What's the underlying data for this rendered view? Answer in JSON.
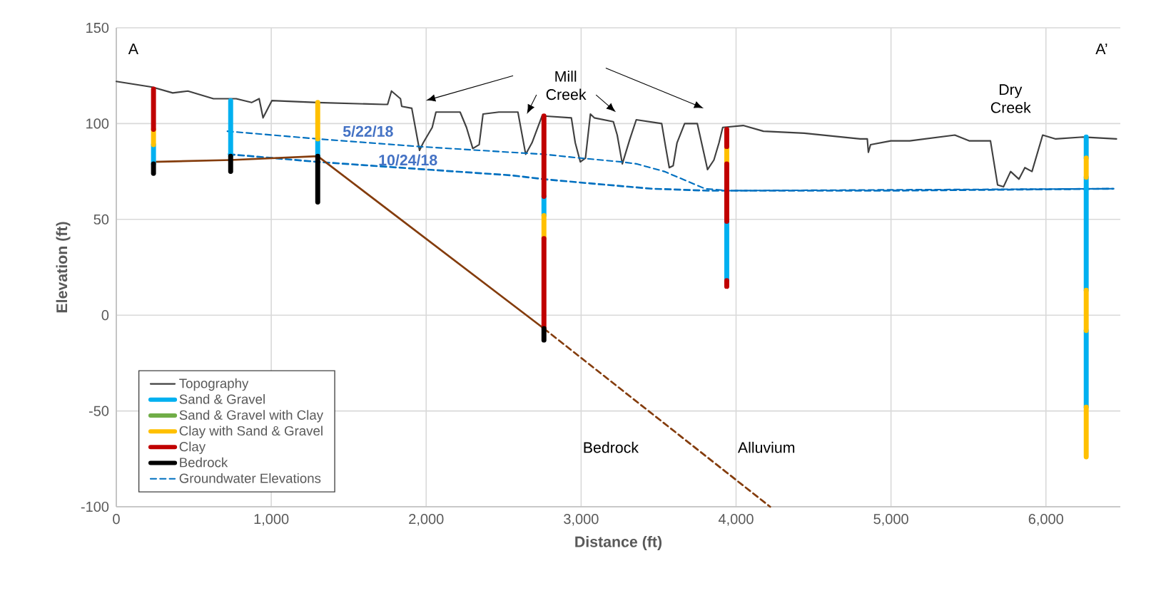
{
  "chart_data": {
    "type": "line",
    "xlabel": "Distance (ft)",
    "ylabel": "Elevation (ft)",
    "xlim": [
      0,
      6480
    ],
    "ylim": [
      -100,
      150
    ],
    "xticks": [
      0,
      {
        "value": 1000,
        "label": "1,000"
      },
      {
        "value": 2000,
        "label": "2,000"
      },
      {
        "value": 3000,
        "label": "3,000"
      },
      {
        "value": 4000,
        "label": "4,000"
      },
      {
        "value": 5000,
        "label": "5,000"
      },
      {
        "value": 6000,
        "label": "6,000"
      }
    ],
    "yticks": [
      -100,
      -50,
      0,
      50,
      100,
      150
    ],
    "grid": true,
    "legend": "bottom left",
    "series": [
      {
        "name": "Topography",
        "color": "#404040",
        "x": [
          0,
          233,
          364,
          462,
          627,
          774,
          873,
          922,
          947,
          1004,
          1300,
          1727,
          1751,
          1776,
          1834,
          1842,
          1907,
          1957,
          1981,
          2039,
          2063,
          2219,
          2260,
          2301,
          2342,
          2367,
          2469,
          2592,
          2642,
          2683,
          2748,
          2937,
          2962,
          2995,
          3028,
          3060,
          3085,
          3208,
          3233,
          3266,
          3315,
          3356,
          3520,
          3545,
          3569,
          3594,
          3619,
          3668,
          3750,
          3783,
          3816,
          3857,
          3890,
          3914,
          4046,
          4177,
          4440,
          4801,
          4847,
          4854,
          4868,
          4999,
          5121,
          5412,
          5504,
          5642,
          5688,
          5726,
          5772,
          5826,
          5864,
          5910,
          5979,
          6063,
          6240,
          6455
        ],
        "values": [
          122,
          119,
          116,
          117,
          113,
          113,
          111,
          113,
          103,
          112,
          111,
          110,
          110,
          117,
          113,
          109,
          108,
          86,
          90,
          98,
          106,
          106,
          98,
          87,
          89,
          105,
          106,
          106,
          84,
          90,
          104,
          103,
          90,
          80,
          82,
          105,
          103,
          101,
          94,
          79,
          92,
          102,
          100,
          88,
          77,
          78,
          90,
          100,
          100,
          88,
          76,
          81,
          90,
          98,
          99,
          96,
          95,
          92,
          92,
          85,
          89,
          91,
          91,
          94,
          91,
          91,
          68,
          67,
          75,
          71,
          77,
          75,
          94,
          92,
          93,
          92
        ]
      },
      {
        "name": "Sand & Gravel",
        "color": "#00b0f0",
        "x": [
          240,
          240
        ],
        "values": [
          89,
          79
        ]
      },
      {
        "name": "Sand & Gravel with Clay",
        "color": "#70ad47"
      },
      {
        "name": "Clay with Sand & Gravel",
        "color": "#ffc000",
        "x": [
          240,
          240
        ],
        "values": [
          97,
          89
        ]
      },
      {
        "name": "Clay",
        "color": "#c00000",
        "x": [
          240,
          240
        ],
        "values": [
          118,
          97
        ]
      },
      {
        "name": "Bedrock",
        "color": "#000000",
        "x": [
          240,
          240
        ],
        "values": [
          79,
          74
        ]
      },
      {
        "name": "Groundwater Elevations",
        "color": "#0070c0",
        "line_style": "dashed",
        "x": [
          717,
          1300,
          1957,
          2548,
          2757,
          2995,
          3261,
          3356,
          3537,
          3800,
          3948,
          6436
        ],
        "values": [
          96,
          92,
          88,
          85,
          84,
          82,
          80,
          79,
          75,
          66,
          65,
          66
        ]
      },
      {
        "color": "#0070c0",
        "line_style": "dashed",
        "x": [
          726,
          1300,
          2006,
          2548,
          2757,
          3028,
          3455,
          3816,
          4999,
          6436
        ],
        "values": [
          84,
          80,
          76,
          73,
          71,
          69,
          66,
          65,
          65,
          66
        ]
      },
      {
        "color": "#843c0c",
        "x": [
          240,
          738,
          1300,
          2760
        ],
        "values": [
          80,
          81,
          83,
          -7
        ]
      },
      {
        "color": "#843c0c",
        "line_style": "dashed",
        "x": [
          2760,
          4220
        ],
        "values": [
          -7,
          -100
        ]
      },
      {
        "color": "#00b0f0",
        "x": [
          738,
          738
        ],
        "values": [
          112,
          83
        ]
      },
      {
        "color": "#00b0f0",
        "x": [
          1300,
          1300
        ],
        "values": [
          92,
          83
        ]
      },
      {
        "color": "#00b0f0",
        "x": [
          2760,
          2760
        ],
        "values": [
          62,
          52
        ]
      },
      {
        "color": "#00b0f0",
        "x": [
          3940,
          3940
        ],
        "values": [
          49,
          18
        ]
      },
      {
        "color": "#00b0f0",
        "x": [
          6260,
          6260
        ],
        "values": [
          93,
          82
        ]
      },
      {
        "color": "#00b0f0",
        "x": [
          6260,
          6260
        ],
        "values": [
          72,
          13
        ]
      },
      {
        "color": "#00b0f0",
        "x": [
          6260,
          6260
        ],
        "values": [
          -8,
          -48
        ]
      },
      {
        "color": "#ffc000",
        "x": [
          1300,
          1300
        ],
        "values": [
          111,
          92
        ]
      },
      {
        "color": "#ffc000",
        "x": [
          2760,
          2760
        ],
        "values": [
          52,
          40
        ]
      },
      {
        "color": "#ffc000",
        "x": [
          3940,
          3940
        ],
        "values": [
          88,
          79
        ]
      },
      {
        "color": "#ffc000",
        "x": [
          6260,
          6260
        ],
        "values": [
          82,
          72
        ]
      },
      {
        "color": "#ffc000",
        "x": [
          6260,
          6260
        ],
        "values": [
          13,
          -8
        ]
      },
      {
        "color": "#ffc000",
        "x": [
          6260,
          6260
        ],
        "values": [
          -48,
          -74
        ]
      },
      {
        "color": "#c00000",
        "x": [
          2760,
          2760
        ],
        "values": [
          104,
          62
        ]
      },
      {
        "color": "#c00000",
        "x": [
          2760,
          2760
        ],
        "values": [
          40,
          -7
        ]
      },
      {
        "color": "#c00000",
        "x": [
          3940,
          3940
        ],
        "values": [
          97,
          88
        ]
      },
      {
        "color": "#c00000",
        "x": [
          3940,
          3940
        ],
        "values": [
          79,
          49
        ]
      },
      {
        "color": "#c00000",
        "x": [
          3940,
          3940
        ],
        "values": [
          18,
          15
        ]
      },
      {
        "color": "#000000",
        "x": [
          738,
          738
        ],
        "values": [
          83,
          75
        ]
      },
      {
        "color": "#000000",
        "x": [
          1300,
          1300
        ],
        "values": [
          83,
          59
        ]
      },
      {
        "color": "#000000",
        "x": [
          2760,
          2760
        ],
        "values": [
          -7,
          -13
        ]
      }
    ],
    "annotations": [
      "5/22/18",
      "10/24/18",
      "Mill Creek",
      "Dry Creek",
      "A",
      "A’",
      "Bedrock",
      "Alluvium"
    ]
  }
}
